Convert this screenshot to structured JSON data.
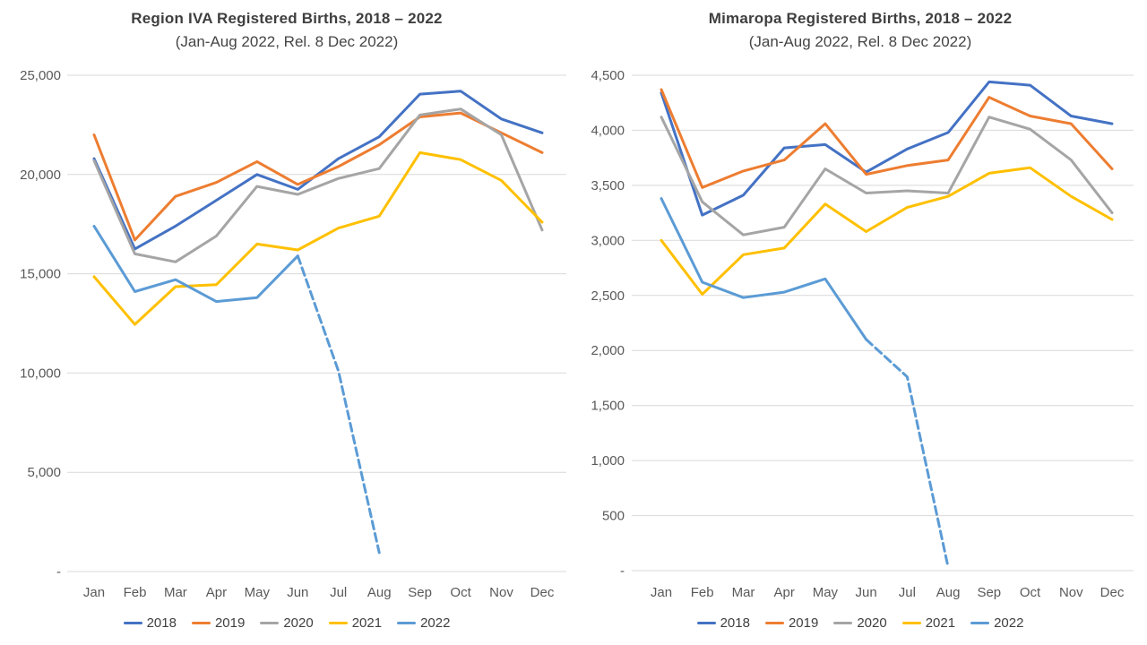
{
  "colors": {
    "background": "#FFFFFF",
    "gridline": "#D9D9D9",
    "axis_text": "#595959",
    "title_text": "#3F3F3F",
    "series_2018": "#4472C4",
    "series_2019": "#ED7D31",
    "series_2020": "#A5A5A5",
    "series_2021": "#FFC000",
    "series_2022": "#5B9BD5"
  },
  "chart_data": [
    {
      "type": "line",
      "title": "Region IVA Registered Births, 2018 – 2022",
      "subtitle": "(Jan-Aug 2022, Rel. 8 Dec 2022)",
      "categories": [
        "Jan",
        "Feb",
        "Mar",
        "Apr",
        "May",
        "Jun",
        "Jul",
        "Aug",
        "Sep",
        "Oct",
        "Nov",
        "Dec"
      ],
      "ylim": [
        0,
        25000
      ],
      "ytick_step": 5000,
      "ytick_labels": [
        "-",
        "5,000",
        "10,000",
        "15,000",
        "20,000",
        "25,000"
      ],
      "grid": true,
      "legend_position": "bottom",
      "legend_entries": [
        "2018",
        "2019",
        "2020",
        "2021",
        "2022"
      ],
      "series": [
        {
          "name": "2018",
          "color": "#4472C4",
          "values": [
            20800,
            16250,
            17400,
            18700,
            20000,
            19250,
            20800,
            21900,
            24050,
            24200,
            22800,
            22100
          ]
        },
        {
          "name": "2019",
          "color": "#ED7D31",
          "values": [
            22000,
            16700,
            18900,
            19600,
            20650,
            19500,
            20400,
            21500,
            22900,
            23100,
            22100,
            21100
          ]
        },
        {
          "name": "2020",
          "color": "#A5A5A5",
          "values": [
            20700,
            16000,
            15600,
            16900,
            19400,
            19000,
            19800,
            20300,
            23000,
            23300,
            22000,
            17200
          ]
        },
        {
          "name": "2021",
          "color": "#FFC000",
          "values": [
            14850,
            12450,
            14350,
            14450,
            16500,
            16200,
            17300,
            17900,
            21100,
            20750,
            19700,
            17600
          ]
        },
        {
          "name": "2022",
          "color": "#5B9BD5",
          "values": [
            17400,
            14100,
            14700,
            13600,
            13800,
            15900,
            10100,
            950
          ],
          "dash_from_index": 5,
          "note": "Jul-Aug shown as dashed projection"
        }
      ]
    },
    {
      "type": "line",
      "title": "Mimaropa Registered Births, 2018 – 2022",
      "subtitle": "(Jan-Aug 2022, Rel. 8 Dec 2022)",
      "categories": [
        "Jan",
        "Feb",
        "Mar",
        "Apr",
        "May",
        "Jun",
        "Jul",
        "Aug",
        "Sep",
        "Oct",
        "Nov",
        "Dec"
      ],
      "ylim": [
        0,
        4500
      ],
      "ytick_step": 500,
      "ytick_labels": [
        "-",
        "500",
        "1,000",
        "1,500",
        "2,000",
        "2,500",
        "3,000",
        "3,500",
        "4,000",
        "4,500"
      ],
      "grid": true,
      "legend_position": "bottom",
      "legend_entries": [
        "2018",
        "2019",
        "2020",
        "2021",
        "2022"
      ],
      "series": [
        {
          "name": "2018",
          "color": "#4472C4",
          "values": [
            4340,
            3230,
            3410,
            3840,
            3870,
            3620,
            3830,
            3980,
            4440,
            4410,
            4130,
            4060
          ]
        },
        {
          "name": "2019",
          "color": "#ED7D31",
          "values": [
            4370,
            3480,
            3630,
            3730,
            4060,
            3600,
            3680,
            3730,
            4300,
            4130,
            4060,
            3650
          ]
        },
        {
          "name": "2020",
          "color": "#A5A5A5",
          "values": [
            4120,
            3350,
            3050,
            3120,
            3650,
            3430,
            3450,
            3430,
            4120,
            4010,
            3730,
            3250
          ]
        },
        {
          "name": "2021",
          "color": "#FFC000",
          "values": [
            3000,
            2510,
            2870,
            2930,
            3330,
            3080,
            3300,
            3400,
            3610,
            3660,
            3400,
            3190
          ]
        },
        {
          "name": "2022",
          "color": "#5B9BD5",
          "values": [
            3380,
            2620,
            2480,
            2530,
            2650,
            2100,
            1760,
            30
          ],
          "dash_from_index": 5,
          "note": "Jul-Aug shown as dashed projection"
        }
      ]
    }
  ]
}
